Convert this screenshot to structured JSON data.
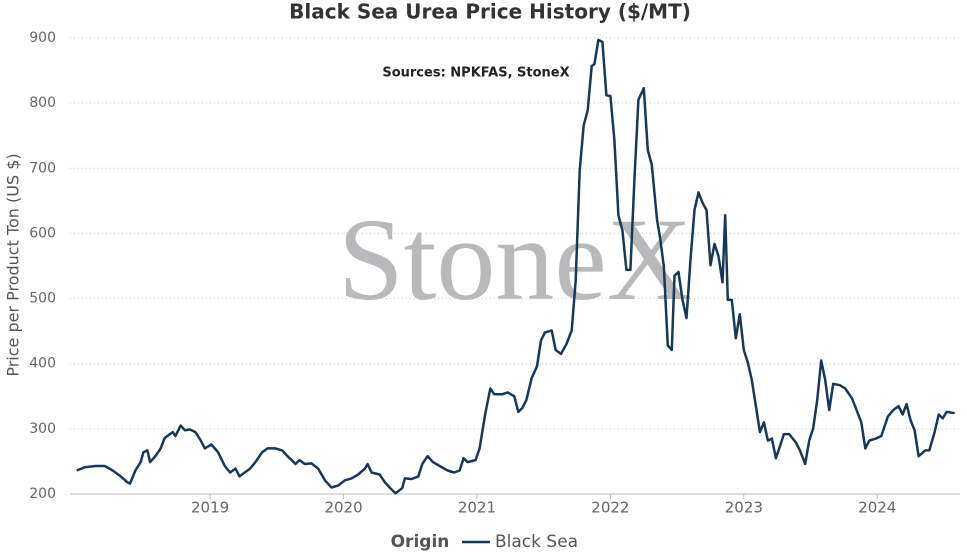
{
  "chart_data": {
    "type": "line",
    "title": "Black Sea Urea Price History ($/MT)",
    "annotation": "Sources: NPKFAS, StoneX",
    "watermark": "StoneX",
    "ylabel": "Price per Product Ton (US $)",
    "legend_title": "Origin",
    "legend": "bottom",
    "grid": true,
    "xlim": [
      2017.95,
      2024.62
    ],
    "xticks": [
      2019,
      2020,
      2021,
      2022,
      2023,
      2024
    ],
    "ylim": [
      200,
      900
    ],
    "yticks": [
      200,
      300,
      400,
      500,
      600,
      700,
      800,
      900
    ],
    "x": [
      2018.0,
      2018.06,
      2018.14,
      2018.21,
      2018.27,
      2018.33,
      2018.38,
      2018.4,
      2018.44,
      2018.48,
      2018.5,
      2018.53,
      2018.55,
      2018.59,
      2018.63,
      2018.66,
      2018.72,
      2018.74,
      2018.78,
      2018.81,
      2018.85,
      2018.89,
      2018.93,
      2018.96,
      2019.01,
      2019.06,
      2019.11,
      2019.15,
      2019.19,
      2019.22,
      2019.26,
      2019.3,
      2019.34,
      2019.39,
      2019.43,
      2019.49,
      2019.54,
      2019.58,
      2019.64,
      2019.67,
      2019.71,
      2019.76,
      2019.81,
      2019.86,
      2019.91,
      2019.96,
      2020.01,
      2020.06,
      2020.11,
      2020.16,
      2020.18,
      2020.21,
      2020.27,
      2020.31,
      2020.35,
      2020.39,
      2020.44,
      2020.46,
      2020.51,
      2020.56,
      2020.59,
      2020.63,
      2020.67,
      2020.72,
      2020.78,
      2020.83,
      2020.87,
      2020.9,
      2020.93,
      2020.99,
      2021.02,
      2021.06,
      2021.1,
      2021.13,
      2021.19,
      2021.23,
      2021.28,
      2021.31,
      2021.34,
      2021.37,
      2021.41,
      2021.45,
      2021.48,
      2021.51,
      2021.56,
      2021.59,
      2021.63,
      2021.67,
      2021.71,
      2021.74,
      2021.77,
      2021.8,
      2021.83,
      2021.86,
      2021.88,
      2021.91,
      2021.94,
      2021.97,
      2022.0,
      2022.03,
      2022.06,
      2022.09,
      2022.12,
      2022.15,
      2022.18,
      2022.21,
      2022.25,
      2022.28,
      2022.31,
      2022.35,
      2022.37,
      2022.4,
      2022.43,
      2022.46,
      2022.48,
      2022.51,
      2022.54,
      2022.57,
      2022.6,
      2022.63,
      2022.66,
      2022.69,
      2022.72,
      2022.75,
      2022.78,
      2022.81,
      2022.84,
      2022.86,
      2022.88,
      2022.91,
      2022.94,
      2022.97,
      2023.0,
      2023.03,
      2023.06,
      2023.09,
      2023.12,
      2023.15,
      2023.18,
      2023.21,
      2023.24,
      2023.27,
      2023.3,
      2023.34,
      2023.39,
      2023.42,
      2023.46,
      2023.49,
      2023.52,
      2023.55,
      2023.58,
      2023.61,
      2023.64,
      2023.67,
      2023.72,
      2023.76,
      2023.81,
      2023.85,
      2023.88,
      2023.91,
      2023.94,
      2023.99,
      2024.03,
      2024.08,
      2024.12,
      2024.16,
      2024.19,
      2024.22,
      2024.25,
      2024.28,
      2024.31,
      2024.36,
      2024.39,
      2024.43,
      2024.46,
      2024.49,
      2024.52,
      2024.58
    ],
    "series": [
      {
        "name": "Black Sea",
        "color": "#17385a",
        "values": [
          236,
          241,
          243,
          243,
          236,
          227,
          218,
          216,
          236,
          249,
          264,
          267,
          249,
          258,
          270,
          286,
          295,
          289,
          305,
          298,
          299,
          295,
          282,
          270,
          276,
          264,
          243,
          233,
          239,
          227,
          233,
          239,
          249,
          264,
          270,
          270,
          267,
          258,
          246,
          252,
          246,
          247,
          239,
          221,
          210,
          213,
          221,
          224,
          230,
          239,
          246,
          233,
          230,
          218,
          209,
          201,
          209,
          224,
          223,
          227,
          246,
          258,
          249,
          243,
          236,
          233,
          236,
          255,
          249,
          252,
          270,
          321,
          362,
          353,
          353,
          356,
          350,
          326,
          332,
          344,
          378,
          396,
          436,
          448,
          451,
          421,
          415,
          430,
          451,
          528,
          697,
          766,
          789,
          857,
          860,
          897,
          894,
          812,
          811,
          743,
          628,
          605,
          544,
          544,
          682,
          805,
          823,
          728,
          705,
          620,
          596,
          550,
          428,
          421,
          535,
          541,
          498,
          470,
          560,
          636,
          663,
          647,
          636,
          551,
          584,
          565,
          525,
          628,
          498,
          498,
          439,
          476,
          421,
          402,
          375,
          336,
          295,
          310,
          282,
          285,
          255,
          273,
          292,
          292,
          279,
          267,
          246,
          282,
          301,
          344,
          405,
          375,
          329,
          369,
          367,
          362,
          347,
          326,
          310,
          270,
          282,
          285,
          289,
          319,
          329,
          335,
          322,
          338,
          313,
          298,
          258,
          267,
          267,
          295,
          322,
          316,
          326,
          324
        ]
      }
    ]
  }
}
